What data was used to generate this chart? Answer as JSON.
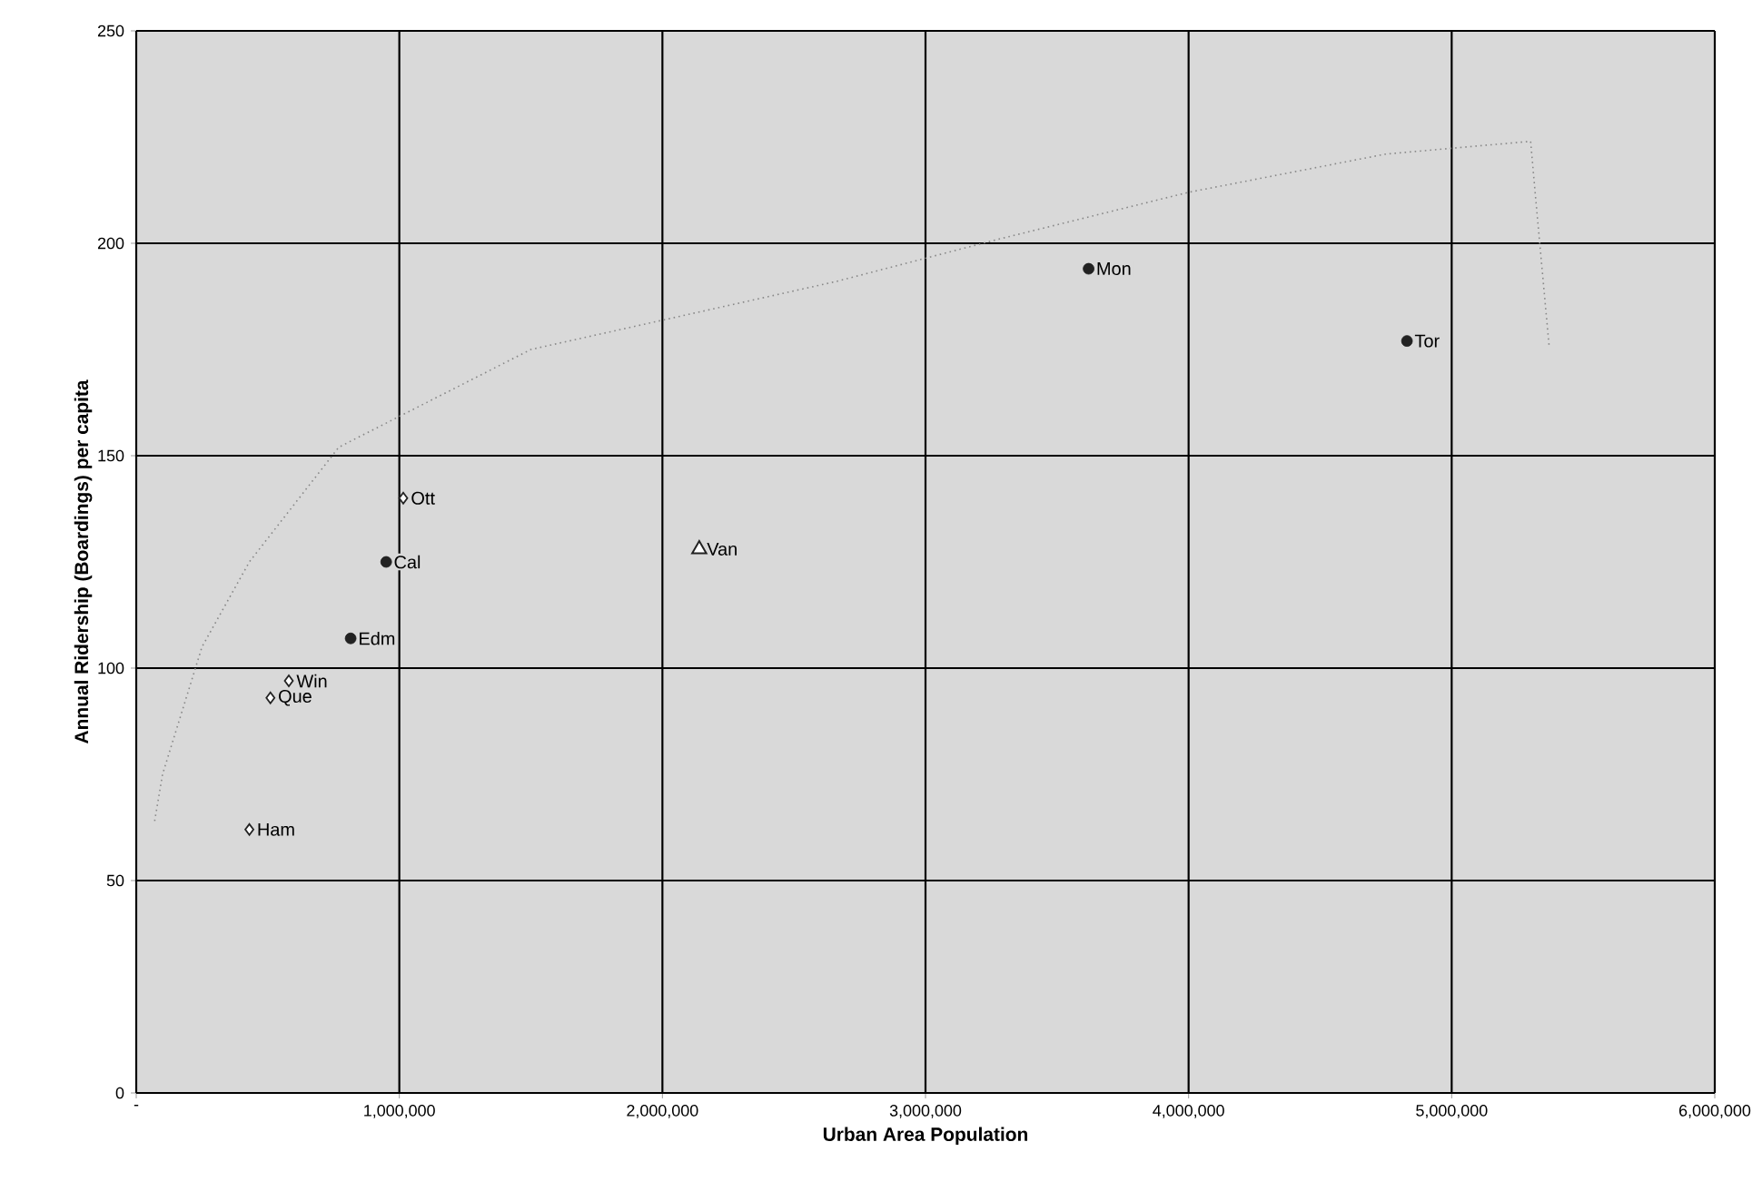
{
  "chart_data": {
    "type": "scatter",
    "xlabel": "Urban Area Population",
    "ylabel": "Annual Ridership (Boardings) per capita",
    "xlim": [
      0,
      6000000
    ],
    "ylim": [
      0,
      250
    ],
    "xticks": [
      {
        "value": 0,
        "label": "-"
      },
      {
        "value": 1000000,
        "label": "1,000,000"
      },
      {
        "value": 2000000,
        "label": "2,000,000"
      },
      {
        "value": 3000000,
        "label": "3,000,000"
      },
      {
        "value": 4000000,
        "label": "4,000,000"
      },
      {
        "value": 5000000,
        "label": "5,000,000"
      },
      {
        "value": 6000000,
        "label": "6,000,000"
      }
    ],
    "yticks": [
      0,
      50,
      100,
      150,
      200,
      250
    ],
    "grid": true,
    "series": [
      {
        "color": "#222222",
        "marker": "circle",
        "x": [
          3620000,
          4830000,
          950000,
          815000
        ],
        "values": [
          194,
          177,
          125,
          107
        ]
      },
      {
        "color": "#222222",
        "marker": "diamond",
        "x": [
          1015000,
          580000,
          510000,
          430000
        ],
        "values": [
          140,
          97,
          93,
          62
        ]
      },
      {
        "color": "#222222",
        "marker": "triangle",
        "x": [
          2140000
        ],
        "values": [
          128
        ]
      },
      {
        "type": "line",
        "color": "#888888",
        "marker": "none",
        "line_style": "dotted",
        "x": [
          70000,
          100000,
          250000,
          430000,
          770000,
          1500000,
          2660000,
          3280000,
          4000000,
          4750000,
          5300000,
          5320000,
          5370000
        ],
        "values": [
          64,
          75,
          105,
          125,
          152,
          175,
          191,
          201,
          212,
          221,
          224,
          210,
          176
        ]
      }
    ],
    "annotations": [
      {
        "text": "Mon",
        "x": 3620000,
        "y": 194
      },
      {
        "text": "Tor",
        "x": 4830000,
        "y": 177
      },
      {
        "text": "Cal",
        "x": 950000,
        "y": 125
      },
      {
        "text": "Edm",
        "x": 815000,
        "y": 107
      },
      {
        "text": "Ott",
        "x": 1015000,
        "y": 140
      },
      {
        "text": "Win",
        "x": 580000,
        "y": 97
      },
      {
        "text": "Que",
        "x": 510000,
        "y": 93
      },
      {
        "text": "Ham",
        "x": 430000,
        "y": 62
      },
      {
        "text": "Van",
        "x": 2140000,
        "y": 128
      }
    ]
  }
}
